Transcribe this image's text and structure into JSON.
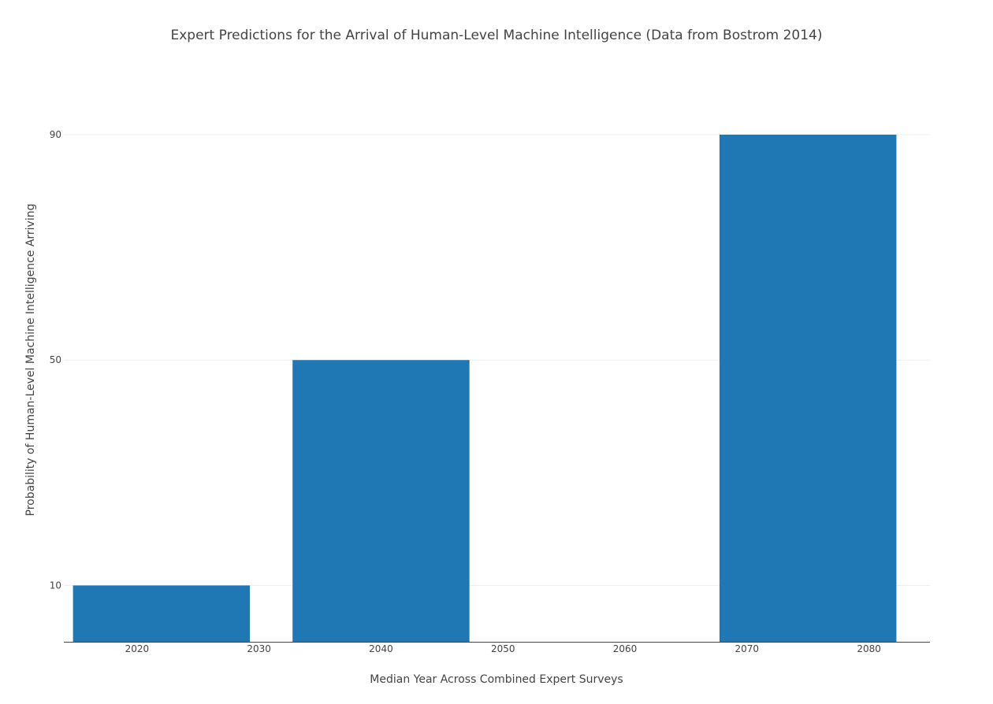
{
  "chart_data": {
    "type": "bar",
    "title": "Expert Predictions for the Arrival of Human-Level Machine Intelligence (Data from Bostrom 2014)",
    "xlabel": "Median Year Across Combined Expert Surveys",
    "ylabel": "Probability of Human-Level Machine Intelligence Arriving",
    "x": [
      2022,
      2040,
      2075
    ],
    "values": [
      10,
      50,
      90
    ],
    "bar_width_years": 14.5,
    "xlim": [
      2014,
      2085
    ],
    "ylim": [
      0,
      90
    ],
    "x_ticks": [
      2020,
      2030,
      2040,
      2050,
      2060,
      2070,
      2080
    ],
    "y_ticks": [
      10,
      50,
      90
    ],
    "grid": "horizontal",
    "legend": "none",
    "bar_color": "#1f77b4"
  }
}
